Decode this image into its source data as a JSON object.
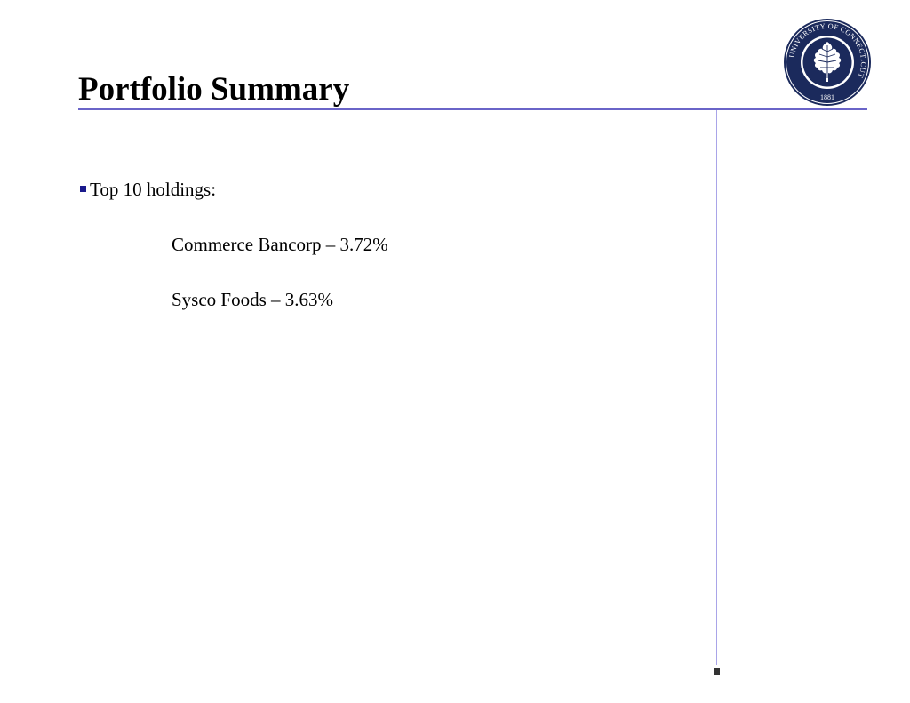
{
  "slide": {
    "title": "Portfolio Summary",
    "seal": {
      "text": "UNIVERSITY OF CONNECTICUT",
      "year": "1881",
      "icon": "oak-leaf-seal-icon"
    },
    "bullets": [
      {
        "label": "Top 10 holdings:",
        "items": [
          "Commerce Bancorp – 3.72%",
          "Sysco Foods – 3.63%"
        ]
      }
    ]
  },
  "colors": {
    "rule": "#6a64c8",
    "vertical_rule": "#a9a4e8",
    "bullet": "#1a1a8c",
    "seal_navy": "#1b2a5c"
  }
}
